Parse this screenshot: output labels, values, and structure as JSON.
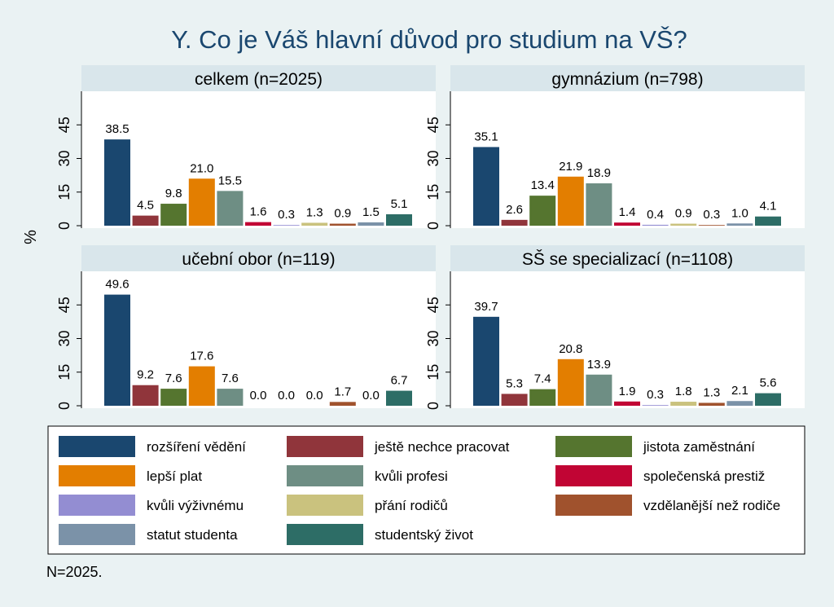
{
  "chart_data": {
    "type": "bar",
    "title": "Y. Co je Váš hlavní důvod pro studium na VŠ?",
    "ylabel": "%",
    "ylim": [
      0,
      60
    ],
    "yticks": [
      0,
      15,
      30,
      45
    ],
    "note": "N=2025.",
    "series": [
      {
        "name": "rozšíření vědění",
        "color": "#1a476f"
      },
      {
        "name": "ještě nechce pracovat",
        "color": "#90353b"
      },
      {
        "name": "jistota zaměstnání",
        "color": "#55752f"
      },
      {
        "name": "lepší plat",
        "color": "#e37e00"
      },
      {
        "name": "kvůli profesi",
        "color": "#6e8e84"
      },
      {
        "name": "společenská prestiž",
        "color": "#c10534"
      },
      {
        "name": "kvůli výživnému",
        "color": "#938dd2"
      },
      {
        "name": "přání rodičů",
        "color": "#cac27e"
      },
      {
        "name": "vzdělanější než rodiče",
        "color": "#a0522d"
      },
      {
        "name": "statut studenta",
        "color": "#7b92a8"
      },
      {
        "name": "studentský život",
        "color": "#2d6d66"
      }
    ],
    "panels": [
      {
        "label": "celkem (n=2025)",
        "values": [
          38.5,
          4.5,
          9.8,
          21.0,
          15.5,
          1.6,
          0.3,
          1.3,
          0.9,
          1.5,
          5.1
        ]
      },
      {
        "label": "gymnázium (n=798)",
        "values": [
          35.1,
          2.6,
          13.4,
          21.9,
          18.9,
          1.4,
          0.4,
          0.9,
          0.3,
          1.0,
          4.1
        ]
      },
      {
        "label": "učební obor (n=119)",
        "values": [
          49.6,
          9.2,
          7.6,
          17.6,
          7.6,
          0.0,
          0.0,
          0.0,
          1.7,
          0.0,
          6.7
        ]
      },
      {
        "label": "SŠ se specializací (n=1108)",
        "values": [
          39.7,
          5.3,
          7.4,
          20.8,
          13.9,
          1.9,
          0.3,
          1.8,
          1.3,
          2.1,
          5.6
        ]
      }
    ]
  }
}
